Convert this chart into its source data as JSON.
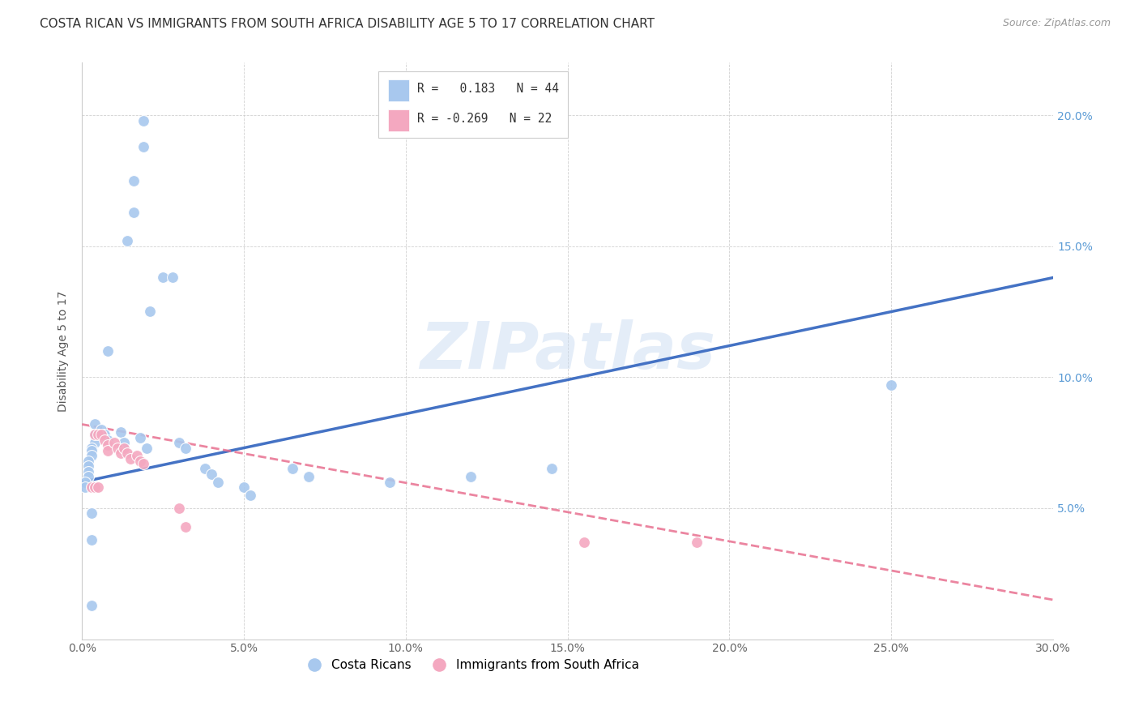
{
  "title": "COSTA RICAN VS IMMIGRANTS FROM SOUTH AFRICA DISABILITY AGE 5 TO 17 CORRELATION CHART",
  "source": "Source: ZipAtlas.com",
  "ylabel": "Disability Age 5 to 17",
  "xlim": [
    0.0,
    0.3
  ],
  "ylim": [
    0.0,
    0.22
  ],
  "xticks": [
    0.0,
    0.05,
    0.1,
    0.15,
    0.2,
    0.25,
    0.3
  ],
  "yticks": [
    0.0,
    0.05,
    0.1,
    0.15,
    0.2
  ],
  "blue_color": "#A8C8EE",
  "pink_color": "#F4A8C0",
  "blue_line_color": "#4472C4",
  "pink_line_color": "#E87090",
  "watermark": "ZIPatlas",
  "legend_r_blue": "R =   0.183",
  "legend_n_blue": "N = 44",
  "legend_r_pink": "R = -0.269",
  "legend_n_pink": "N = 22",
  "blue_scatter_x": [
    0.019,
    0.019,
    0.016,
    0.016,
    0.014,
    0.025,
    0.028,
    0.021,
    0.008,
    0.004,
    0.004,
    0.004,
    0.003,
    0.003,
    0.003,
    0.002,
    0.002,
    0.002,
    0.002,
    0.001,
    0.001,
    0.006,
    0.007,
    0.008,
    0.012,
    0.013,
    0.018,
    0.02,
    0.03,
    0.032,
    0.038,
    0.04,
    0.042,
    0.05,
    0.052,
    0.065,
    0.07,
    0.095,
    0.12,
    0.145,
    0.25,
    0.003,
    0.003,
    0.003
  ],
  "blue_scatter_y": [
    0.198,
    0.188,
    0.175,
    0.163,
    0.152,
    0.138,
    0.138,
    0.125,
    0.11,
    0.082,
    0.078,
    0.075,
    0.073,
    0.072,
    0.07,
    0.068,
    0.066,
    0.064,
    0.062,
    0.06,
    0.058,
    0.08,
    0.078,
    0.076,
    0.079,
    0.075,
    0.077,
    0.073,
    0.075,
    0.073,
    0.065,
    0.063,
    0.06,
    0.058,
    0.055,
    0.065,
    0.062,
    0.06,
    0.062,
    0.065,
    0.097,
    0.048,
    0.038,
    0.013
  ],
  "pink_scatter_x": [
    0.003,
    0.004,
    0.004,
    0.005,
    0.005,
    0.006,
    0.007,
    0.008,
    0.008,
    0.01,
    0.011,
    0.012,
    0.013,
    0.014,
    0.015,
    0.017,
    0.018,
    0.019,
    0.03,
    0.032,
    0.155,
    0.19
  ],
  "pink_scatter_y": [
    0.058,
    0.078,
    0.058,
    0.078,
    0.058,
    0.078,
    0.076,
    0.074,
    0.072,
    0.075,
    0.073,
    0.071,
    0.073,
    0.071,
    0.069,
    0.07,
    0.068,
    0.067,
    0.05,
    0.043,
    0.037,
    0.037
  ],
  "blue_trend_y_start": 0.06,
  "blue_trend_y_end": 0.138,
  "pink_trend_y_start": 0.082,
  "pink_trend_y_end": 0.015
}
